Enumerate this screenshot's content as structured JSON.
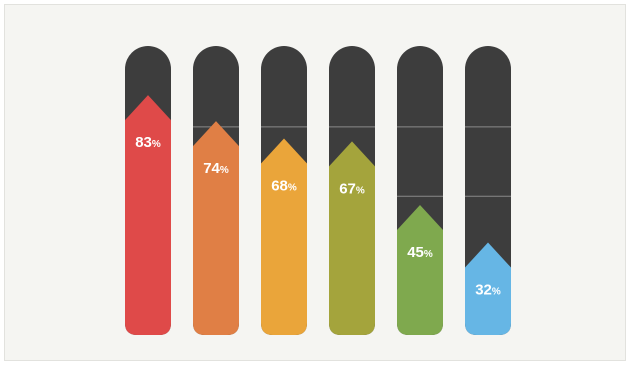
{
  "chart_data": {
    "type": "bar",
    "title": "",
    "xlabel": "",
    "ylabel": "",
    "ylim": [
      0,
      100
    ],
    "categories": [
      "",
      "",
      "",
      "",
      "",
      ""
    ],
    "values": [
      83,
      74,
      68,
      67,
      45,
      32
    ],
    "labels": [
      "83%",
      "74%",
      "68%",
      "67%",
      "45%",
      "32%"
    ],
    "colors": [
      "#df4a49",
      "#e07f45",
      "#eaa53a",
      "#a4a43c",
      "#7fa94e",
      "#66b6e5"
    ],
    "track_color": "#3d3d3d",
    "grid": true,
    "grid_values": [
      72,
      48
    ],
    "legend": "none"
  }
}
